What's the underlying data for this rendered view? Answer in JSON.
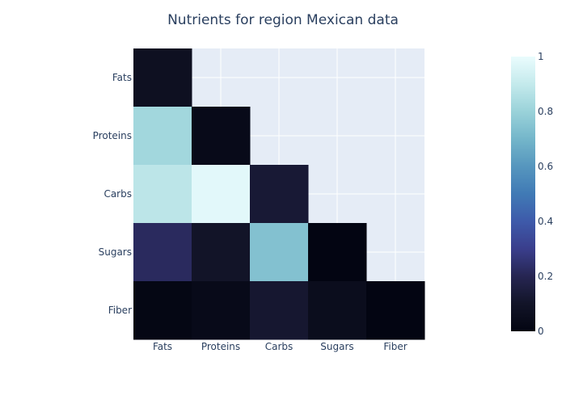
{
  "chart_data": {
    "type": "heatmap",
    "title": "Nutrients for region Mexican data",
    "x_categories": [
      "Fats",
      "Proteins",
      "Carbs",
      "Sugars",
      "Fiber"
    ],
    "y_categories": [
      "Fats",
      "Proteins",
      "Carbs",
      "Sugars",
      "Fiber"
    ],
    "z": [
      [
        0.07,
        null,
        null,
        null,
        null
      ],
      [
        0.82,
        0.03,
        null,
        null,
        null
      ],
      [
        0.88,
        0.98,
        0.13,
        null,
        null
      ],
      [
        0.22,
        0.1,
        0.74,
        0.0,
        null
      ],
      [
        0.01,
        0.03,
        0.12,
        0.05,
        0.0
      ]
    ],
    "zlim": [
      0,
      1
    ],
    "colorscale": "ice",
    "colorbar_ticks": [
      0,
      0.2,
      0.4,
      0.6,
      0.8,
      1
    ],
    "colorbar_tick_labels": [
      "0",
      "0.2",
      "0.4",
      "0.6",
      "0.8",
      "1"
    ],
    "xlabel": "",
    "ylabel": "",
    "grid": true,
    "plot_background": "#e5ecf6",
    "text_color": "#2a3f5f",
    "grid_color": "#ffffff"
  }
}
